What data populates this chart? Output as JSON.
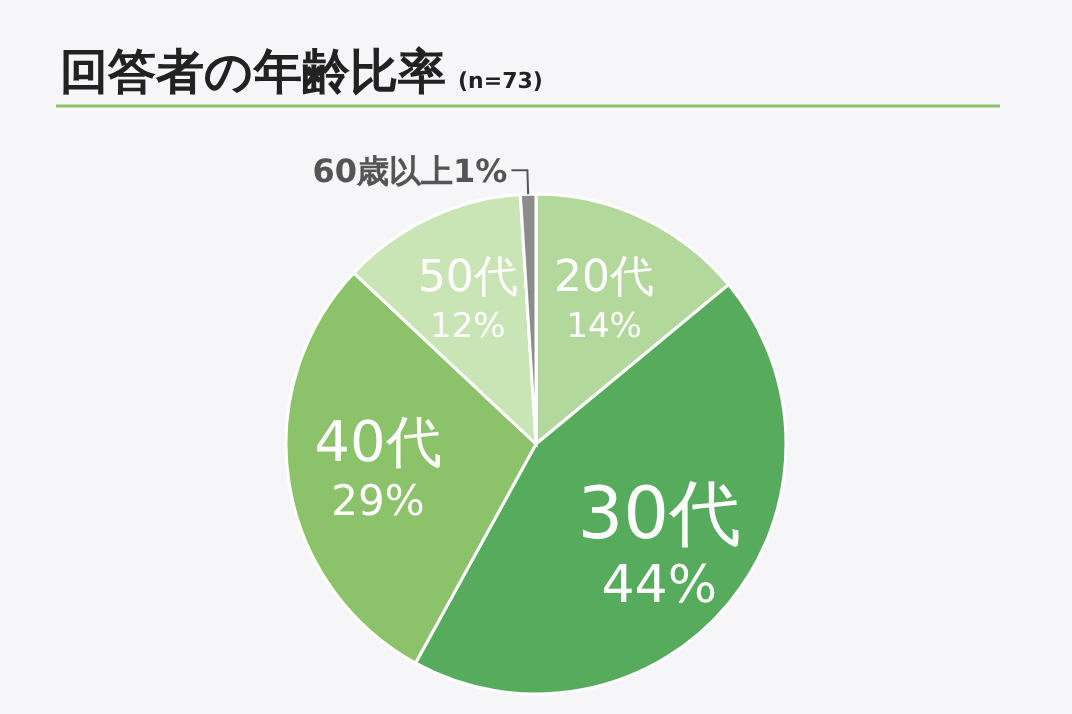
{
  "chart_data": {
    "type": "pie",
    "title": "回答者の年齢比率",
    "subtitle": "(n=73)",
    "categories": [
      "20代",
      "30代",
      "40代",
      "50代",
      "60歳以上"
    ],
    "values": [
      14,
      44,
      29,
      12,
      1
    ],
    "value_labels": [
      "14%",
      "44%",
      "29%",
      "12%",
      "1%"
    ],
    "colors": [
      "#b3d89c",
      "#56ab5c",
      "#8bc26a",
      "#c9e4b5",
      "#8c8c8c"
    ]
  }
}
